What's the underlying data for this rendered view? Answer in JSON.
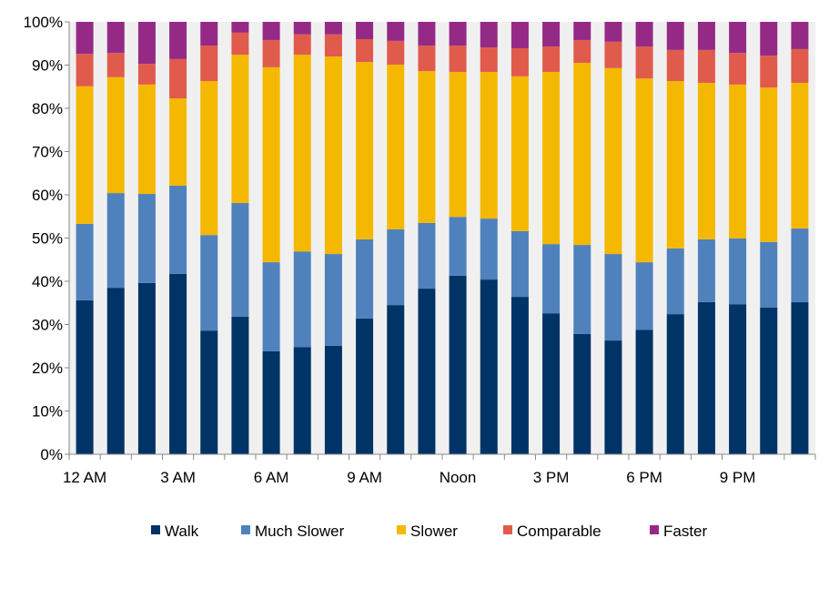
{
  "chart_data": {
    "type": "bar",
    "stacked": true,
    "categories": [
      "12 AM",
      "1 AM",
      "2 AM",
      "3 AM",
      "4 AM",
      "5 AM",
      "6 AM",
      "7 AM",
      "8 AM",
      "9 AM",
      "10 AM",
      "11 AM",
      "Noon",
      "1 PM",
      "2 PM",
      "3 PM",
      "4 PM",
      "5 PM",
      "6 PM",
      "7 PM",
      "8 PM",
      "9 PM",
      "10 PM",
      "11 PM"
    ],
    "tick_labels": [
      "12 AM",
      "",
      "",
      "3 AM",
      "",
      "",
      "6 AM",
      "",
      "",
      "9 AM",
      "",
      "",
      "Noon",
      "",
      "",
      "3 PM",
      "",
      "",
      "6 PM",
      "",
      "",
      "9 PM",
      "",
      ""
    ],
    "ylim": [
      0,
      100
    ],
    "yticks": [
      "0%",
      "10%",
      "20%",
      "30%",
      "40%",
      "50%",
      "60%",
      "70%",
      "80%",
      "90%",
      "100%"
    ],
    "legend_position": "bottom",
    "series": [
      {
        "name": "Walk",
        "color": "#003366",
        "values": [
          35.6,
          38.5,
          39.6,
          41.7,
          28.6,
          31.8,
          23.8,
          24.8,
          25.1,
          31.4,
          34.5,
          38.3,
          41.3,
          40.4,
          36.4,
          32.6,
          27.8,
          26.3,
          28.8,
          32.4,
          35.2,
          34.7,
          33.9,
          35.2
        ]
      },
      {
        "name": "Much Slower",
        "color": "#4f81bd",
        "values": [
          17.7,
          21.9,
          20.6,
          20.4,
          22.1,
          26.3,
          20.6,
          22.1,
          21.2,
          18.3,
          17.5,
          15.2,
          13.6,
          14.1,
          15.2,
          16.0,
          20.6,
          20.0,
          15.6,
          15.2,
          14.5,
          15.2,
          15.2,
          17.0
        ]
      },
      {
        "name": "Slower",
        "color": "#f5b800",
        "values": [
          31.8,
          26.8,
          25.3,
          20.2,
          35.6,
          34.3,
          45.1,
          45.5,
          45.7,
          41.0,
          38.1,
          35.1,
          33.5,
          33.9,
          35.8,
          39.8,
          42.1,
          43.0,
          42.5,
          38.7,
          36.2,
          35.6,
          35.7,
          33.7
        ]
      },
      {
        "name": "Comparable",
        "color": "#e05b4c",
        "values": [
          7.5,
          5.6,
          4.8,
          9.1,
          8.2,
          5.1,
          6.3,
          4.7,
          5.1,
          5.3,
          5.5,
          5.9,
          6.1,
          5.7,
          6.5,
          5.9,
          5.3,
          6.1,
          7.4,
          7.2,
          7.6,
          7.3,
          7.4,
          7.8
        ]
      },
      {
        "name": "Faster",
        "color": "#952a86",
        "values": [
          7.4,
          7.2,
          9.7,
          8.6,
          5.5,
          2.5,
          4.2,
          2.9,
          2.9,
          4.0,
          4.4,
          5.5,
          5.5,
          5.9,
          6.1,
          5.7,
          4.2,
          4.6,
          5.7,
          6.5,
          6.5,
          7.2,
          7.8,
          6.3
        ]
      }
    ]
  }
}
